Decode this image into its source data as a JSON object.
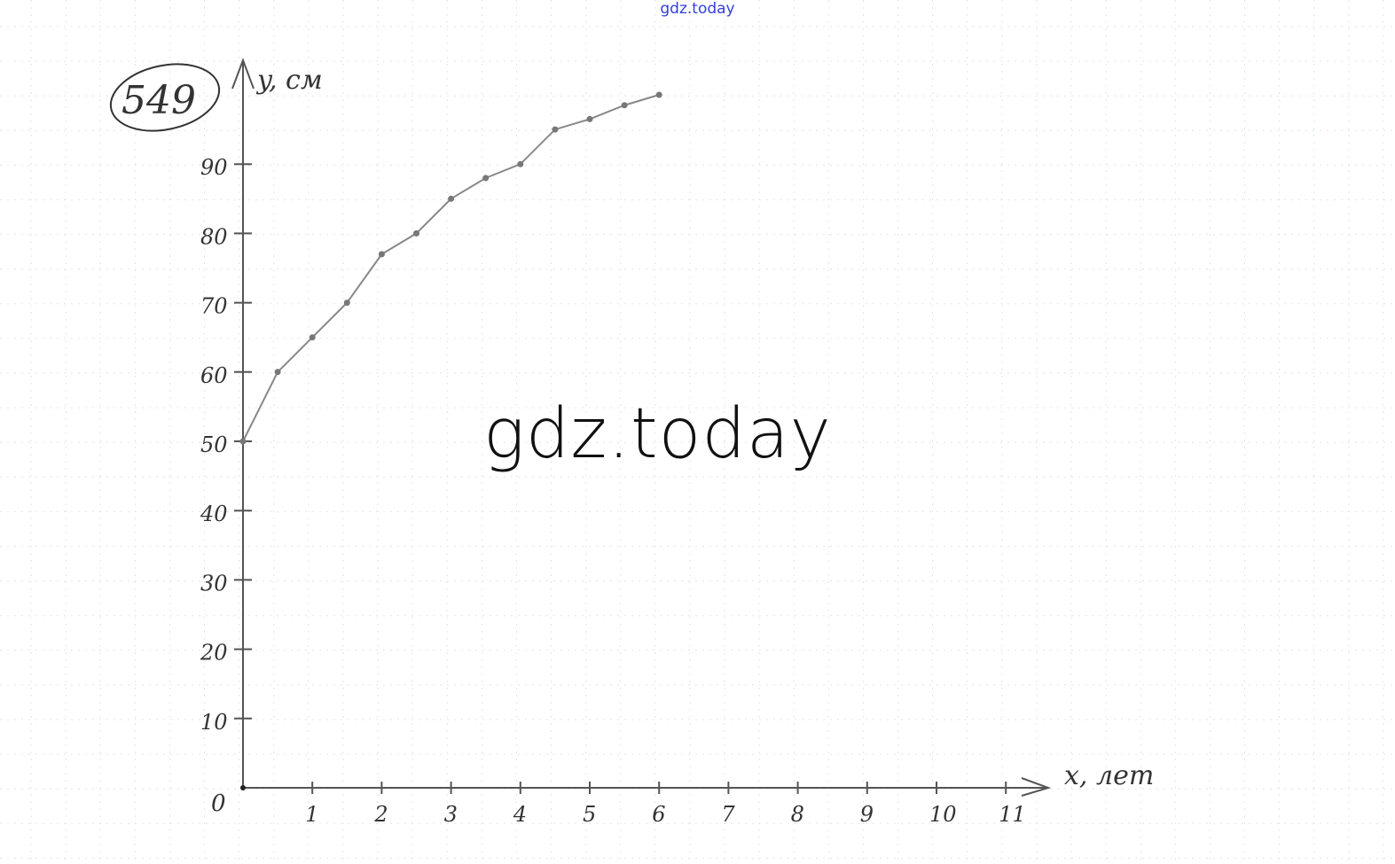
{
  "watermark_top": "gdz.today",
  "watermark_center": "gdz.today",
  "problem_number": "549",
  "chart_data": {
    "type": "line",
    "title": "",
    "xlabel": "x, лет",
    "ylabel": "y, см",
    "origin_label": "0",
    "xlim": [
      0,
      11
    ],
    "ylim": [
      0,
      100
    ],
    "x_ticks": [
      "1",
      "2",
      "3",
      "4",
      "5",
      "6",
      "7",
      "8",
      "9",
      "10",
      "11"
    ],
    "y_ticks": [
      "10",
      "20",
      "30",
      "40",
      "50",
      "60",
      "70",
      "80",
      "90"
    ],
    "grid": true,
    "x": [
      0,
      0.5,
      1,
      1.5,
      2,
      2.5,
      3,
      3.5,
      4,
      4.5,
      5,
      5.5,
      6
    ],
    "y": [
      50,
      60,
      65,
      70,
      77,
      80,
      85,
      88,
      90,
      95,
      96.5,
      98.5,
      100
    ],
    "colors": {
      "line": "#888888",
      "axis": "#555555",
      "grid": "#dde6ee"
    }
  }
}
